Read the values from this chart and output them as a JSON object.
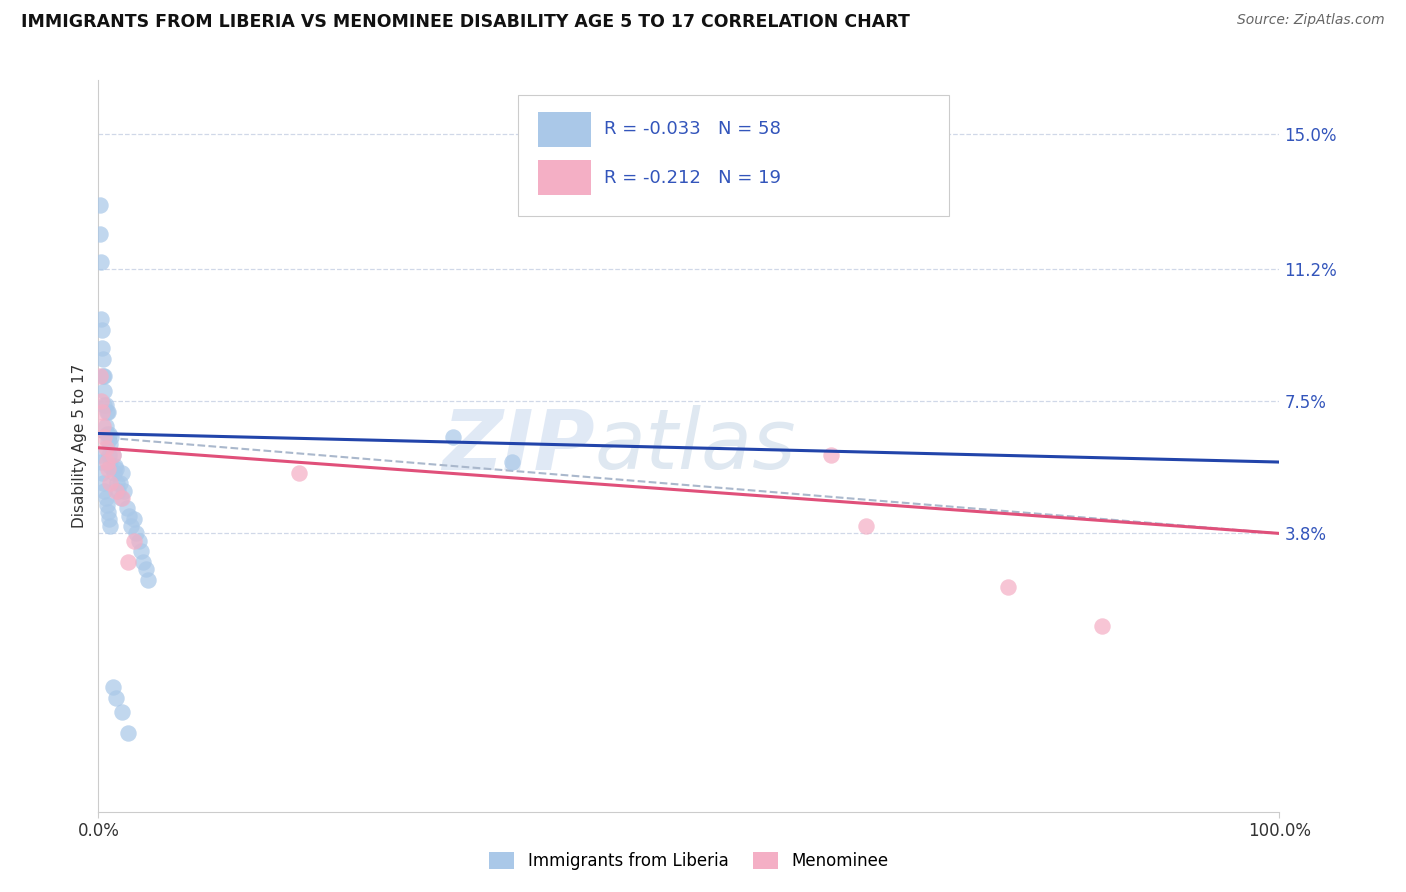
{
  "title": "IMMIGRANTS FROM LIBERIA VS MENOMINEE DISABILITY AGE 5 TO 17 CORRELATION CHART",
  "source": "Source: ZipAtlas.com",
  "ylabel": "Disability Age 5 to 17",
  "right_ytick_vals": [
    0.15,
    0.112,
    0.075,
    0.038
  ],
  "right_ytick_labels": [
    "15.0%",
    "11.2%",
    "7.5%",
    "3.8%"
  ],
  "xmin": 0.0,
  "xmax": 1.0,
  "ymin": -0.04,
  "ymax": 0.165,
  "blue_r": -0.033,
  "blue_n": 58,
  "pink_r": -0.212,
  "pink_n": 19,
  "blue_marker_color": "#aac8e8",
  "pink_marker_color": "#f4afc5",
  "blue_line_color": "#2244aa",
  "pink_line_color": "#e0507a",
  "dashed_line_color": "#aab8cc",
  "legend_label_blue": "Immigrants from Liberia",
  "legend_label_pink": "Menominee",
  "text_color": "#3355bb",
  "label_color": "#333333",
  "background_color": "#ffffff",
  "grid_color": "#d0d8e8",
  "blue_scatter_x": [
    0.001,
    0.0015,
    0.002,
    0.002,
    0.003,
    0.003,
    0.004,
    0.004,
    0.005,
    0.005,
    0.005,
    0.006,
    0.006,
    0.007,
    0.007,
    0.008,
    0.008,
    0.009,
    0.009,
    0.01,
    0.01,
    0.011,
    0.012,
    0.013,
    0.014,
    0.015,
    0.016,
    0.017,
    0.018,
    0.019,
    0.02,
    0.022,
    0.024,
    0.026,
    0.028,
    0.03,
    0.032,
    0.034,
    0.036,
    0.038,
    0.04,
    0.042,
    0.001,
    0.002,
    0.003,
    0.004,
    0.005,
    0.006,
    0.007,
    0.008,
    0.009,
    0.01,
    0.012,
    0.015,
    0.02,
    0.025,
    0.3,
    0.35
  ],
  "blue_scatter_y": [
    0.13,
    0.122,
    0.114,
    0.098,
    0.095,
    0.09,
    0.087,
    0.082,
    0.082,
    0.078,
    0.074,
    0.074,
    0.068,
    0.072,
    0.066,
    0.072,
    0.064,
    0.066,
    0.06,
    0.063,
    0.057,
    0.065,
    0.06,
    0.055,
    0.057,
    0.056,
    0.052,
    0.05,
    0.052,
    0.048,
    0.055,
    0.05,
    0.045,
    0.043,
    0.04,
    0.042,
    0.038,
    0.036,
    0.033,
    0.03,
    0.028,
    0.025,
    0.06,
    0.058,
    0.055,
    0.052,
    0.05,
    0.048,
    0.046,
    0.044,
    0.042,
    0.04,
    -0.005,
    -0.008,
    -0.012,
    -0.018,
    0.065,
    0.058
  ],
  "pink_scatter_x": [
    0.001,
    0.002,
    0.003,
    0.004,
    0.005,
    0.006,
    0.007,
    0.008,
    0.01,
    0.012,
    0.015,
    0.02,
    0.025,
    0.03,
    0.17,
    0.62,
    0.65,
    0.77,
    0.85
  ],
  "pink_scatter_y": [
    0.082,
    0.075,
    0.072,
    0.068,
    0.065,
    0.062,
    0.058,
    0.056,
    0.052,
    0.06,
    0.05,
    0.048,
    0.03,
    0.036,
    0.055,
    0.06,
    0.04,
    0.023,
    0.012
  ],
  "watermark_zip": "ZIP",
  "watermark_atlas": "atlas",
  "blue_line_start_y": 0.066,
  "blue_line_end_y": 0.058,
  "pink_line_start_y": 0.062,
  "pink_line_end_y": 0.038,
  "dash_line_start_y": 0.065,
  "dash_line_end_y": 0.038
}
